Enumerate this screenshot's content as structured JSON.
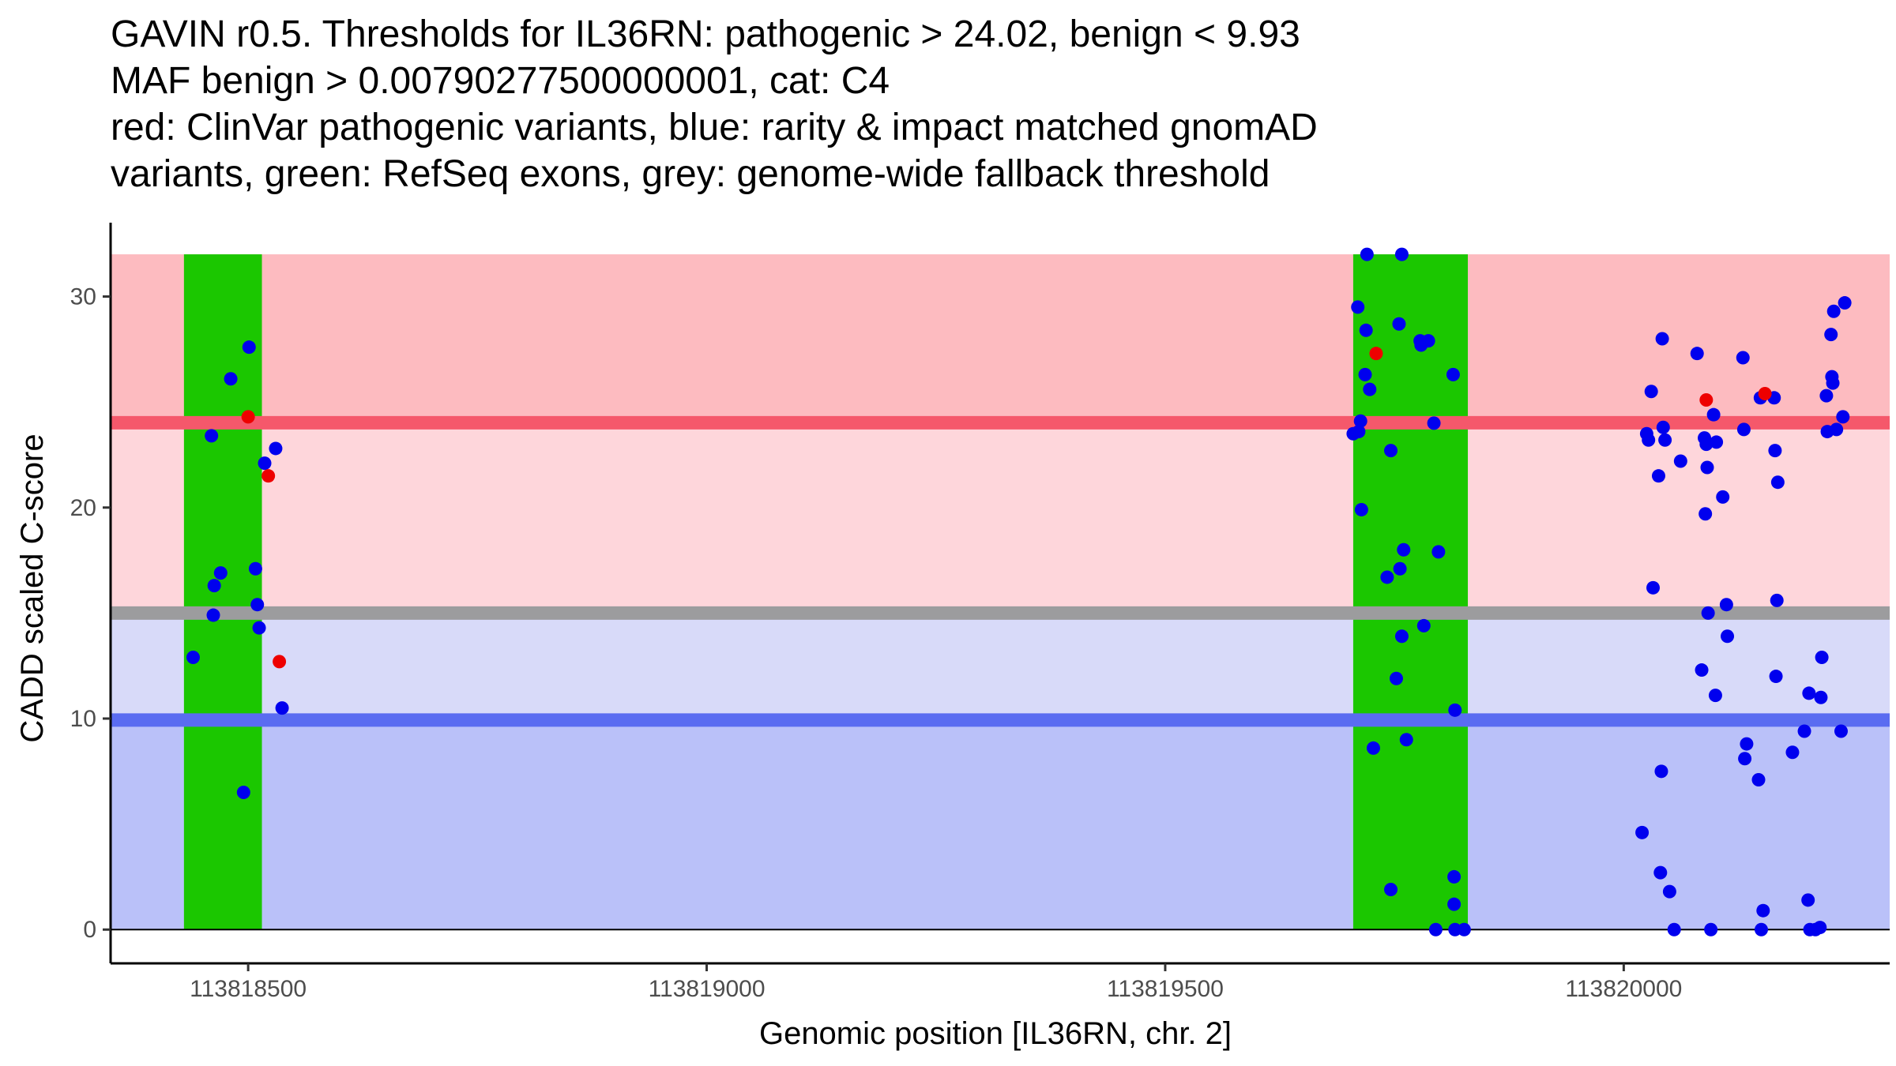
{
  "chart_data": {
    "type": "scatter",
    "title_lines": [
      "GAVIN r0.5. Thresholds for IL36RN: pathogenic > 24.02, benign < 9.93",
      "MAF benign > 0.00790277500000001, cat: C4",
      "red: ClinVar pathogenic variants, blue: rarity & impact matched gnomAD",
      "variants, green: RefSeq exons, grey: genome-wide fallback threshold"
    ],
    "xlabel": "Genomic position [IL36RN, chr. 2]",
    "ylabel": "CADD scaled C-score",
    "xlim": [
      113818350,
      113820290
    ],
    "ylim": [
      -1.6,
      33.5
    ],
    "xticks": [
      113818500,
      113819000,
      113819500,
      113820000
    ],
    "xtick_labels": [
      "113818500",
      "113819000",
      "113819500",
      "113820000"
    ],
    "yticks": [
      0,
      10,
      20,
      30
    ],
    "ytick_labels": [
      "0",
      "10",
      "20",
      "30"
    ],
    "thresholds": {
      "pathogenic": 24.02,
      "benign": 9.93,
      "fallback": 15.0,
      "band_top": 32.0,
      "band_bottom": 0
    },
    "exons": [
      {
        "start": 113818430,
        "end": 113818515
      },
      {
        "start": 113819705,
        "end": 113819830
      }
    ],
    "colors": {
      "pathogenic_band": "#fdbbc0",
      "middle_band_upper": "#fed6db",
      "middle_band_lower": "#d8daf9",
      "benign_band": "#bac1f9",
      "pathogenic_line": "#f5586b",
      "benign_line": "#5a6cf1",
      "fallback_line": "#9c9c9e",
      "exon": "#1bc700",
      "clinvar_point": "#ee0000",
      "gnomad_point": "#0000ee"
    },
    "series": [
      {
        "name": "gnomAD",
        "points": [
          [
            113818440,
            12.9
          ],
          [
            113818460,
            23.4
          ],
          [
            113818462,
            14.9
          ],
          [
            113818463,
            16.3
          ],
          [
            113818470,
            16.9
          ],
          [
            113818481,
            26.1
          ],
          [
            113818495,
            6.5
          ],
          [
            113818501,
            27.6
          ],
          [
            113818508,
            17.1
          ],
          [
            113818510,
            15.4
          ],
          [
            113818512,
            14.3
          ],
          [
            113818518,
            22.1
          ],
          [
            113818530,
            22.8
          ],
          [
            113818537,
            10.5
          ],
          [
            113819705,
            23.5
          ],
          [
            113819710,
            29.5
          ],
          [
            113819711,
            23.6
          ],
          [
            113819713,
            24.1
          ],
          [
            113819714,
            19.9
          ],
          [
            113819718,
            26.3
          ],
          [
            113819719,
            28.4
          ],
          [
            113819720,
            32.0
          ],
          [
            113819723,
            25.6
          ],
          [
            113819727,
            8.6
          ],
          [
            113819742,
            16.7
          ],
          [
            113819746,
            22.7
          ],
          [
            113819746,
            1.9
          ],
          [
            113819752,
            11.9
          ],
          [
            113819755,
            28.7
          ],
          [
            113819756,
            17.1
          ],
          [
            113819758,
            13.9
          ],
          [
            113819760,
            18.0
          ],
          [
            113819763,
            9.0
          ],
          [
            113819758,
            32.0
          ],
          [
            113819778,
            27.9
          ],
          [
            113819779,
            27.7
          ],
          [
            113819782,
            14.4
          ],
          [
            113819787,
            27.9
          ],
          [
            113819793,
            24.0
          ],
          [
            113819795,
            0.0
          ],
          [
            113819798,
            17.9
          ],
          [
            113819814,
            26.3
          ],
          [
            113819815,
            2.5
          ],
          [
            113819815,
            1.2
          ],
          [
            113819816,
            10.4
          ],
          [
            113819816,
            0.0
          ],
          [
            113819826,
            0.0
          ],
          [
            113820020,
            4.6
          ],
          [
            113820025,
            23.5
          ],
          [
            113820027,
            23.2
          ],
          [
            113820030,
            25.5
          ],
          [
            113820032,
            16.2
          ],
          [
            113820038,
            21.5
          ],
          [
            113820040,
            2.7
          ],
          [
            113820041,
            7.5
          ],
          [
            113820042,
            28.0
          ],
          [
            113820043,
            23.8
          ],
          [
            113820045,
            23.2
          ],
          [
            113820050,
            1.8
          ],
          [
            113820055,
            0.0
          ],
          [
            113820062,
            22.2
          ],
          [
            113820080,
            27.3
          ],
          [
            113820085,
            12.3
          ],
          [
            113820088,
            23.3
          ],
          [
            113820089,
            19.7
          ],
          [
            113820090,
            23.0
          ],
          [
            113820091,
            21.9
          ],
          [
            113820092,
            15.0
          ],
          [
            113820095,
            0.0
          ],
          [
            113820098,
            24.4
          ],
          [
            113820100,
            11.1
          ],
          [
            113820101,
            23.1
          ],
          [
            113820108,
            20.5
          ],
          [
            113820112,
            15.4
          ],
          [
            113820113,
            13.9
          ],
          [
            113820130,
            27.1
          ],
          [
            113820131,
            23.7
          ],
          [
            113820132,
            8.1
          ],
          [
            113820134,
            8.8
          ],
          [
            113820147,
            7.1
          ],
          [
            113820149,
            25.2
          ],
          [
            113820150,
            0.0
          ],
          [
            113820152,
            0.9
          ],
          [
            113820164,
            25.2
          ],
          [
            113820165,
            22.7
          ],
          [
            113820166,
            12.0
          ],
          [
            113820167,
            15.6
          ],
          [
            113820168,
            21.2
          ],
          [
            113820184,
            8.4
          ],
          [
            113820197,
            9.4
          ],
          [
            113820201,
            1.4
          ],
          [
            113820202,
            11.2
          ],
          [
            113820203,
            0.0
          ],
          [
            113820209,
            0.0
          ],
          [
            113820214,
            0.1
          ],
          [
            113820215,
            11.0
          ],
          [
            113820216,
            12.9
          ],
          [
            113820221,
            25.3
          ],
          [
            113820222,
            23.6
          ],
          [
            113820226,
            28.2
          ],
          [
            113820227,
            26.2
          ],
          [
            113820228,
            25.9
          ],
          [
            113820229,
            29.3
          ],
          [
            113820232,
            23.7
          ],
          [
            113820237,
            9.4
          ],
          [
            113820239,
            24.3
          ],
          [
            113820241,
            29.7
          ]
        ]
      },
      {
        "name": "ClinVar",
        "points": [
          [
            113818500,
            24.3
          ],
          [
            113818522,
            21.5
          ],
          [
            113818534,
            12.7
          ],
          [
            113819730,
            27.3
          ],
          [
            113820090,
            25.1
          ],
          [
            113820154,
            25.4
          ]
        ]
      }
    ]
  }
}
